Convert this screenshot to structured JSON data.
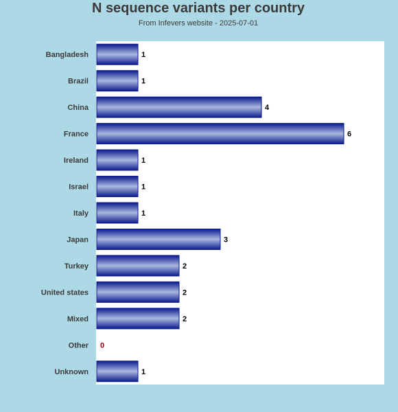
{
  "chart_data": {
    "type": "bar",
    "orientation": "horizontal",
    "title": "N sequence variants per country",
    "subtitle": "From Infevers website - 2025-07-01",
    "categories": [
      "Bangladesh",
      "Brazil",
      "China",
      "France",
      "Ireland",
      "Israel",
      "Italy",
      "Japan",
      "Turkey",
      "United states",
      "Mixed",
      "Other",
      "Unknown"
    ],
    "values": [
      1,
      1,
      4,
      6,
      1,
      1,
      1,
      3,
      2,
      2,
      2,
      0,
      1
    ],
    "xlim": [
      0,
      7
    ],
    "grid": false,
    "colors": {
      "bar_edge": "#0a1a8c",
      "bar_mid": "#aab8e0",
      "zero_label": "#8b0000",
      "value_label": "#000000",
      "background": "#add8e6",
      "plot_bg": "#ffffff"
    }
  }
}
